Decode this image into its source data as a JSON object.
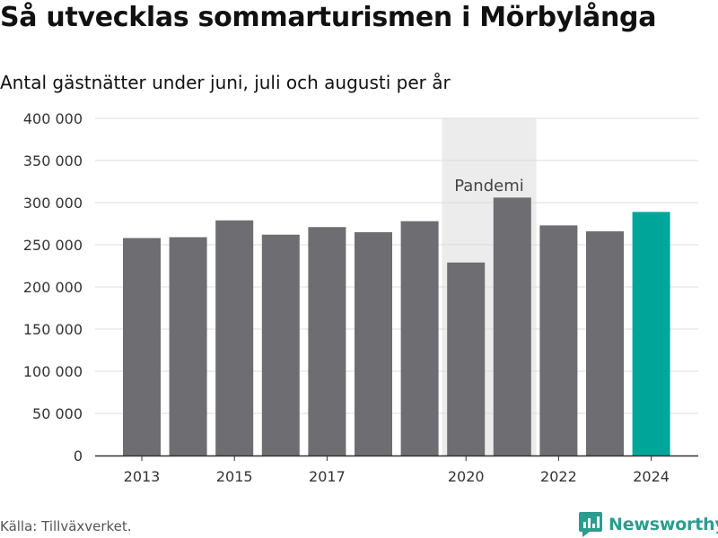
{
  "header": {
    "title": "Så utvecklas sommarturismen i Mörbylånga",
    "subtitle": "Antal gästnätter under juni, juli och augusti per år"
  },
  "footer": {
    "source": "Källa: Tillväxverket.",
    "brand": "Newsworthy"
  },
  "chart_data": {
    "type": "bar",
    "categories": [
      "2013",
      "2014",
      "2015",
      "2016",
      "2017",
      "2018",
      "2019",
      "2020",
      "2021",
      "2022",
      "2023",
      "2024"
    ],
    "values": [
      258000,
      259000,
      279000,
      262000,
      271000,
      265000,
      278000,
      229000,
      306000,
      273000,
      266000,
      289000
    ],
    "x_tick_labels": [
      "2013",
      "2015",
      "2017",
      "2020",
      "2022",
      "2024"
    ],
    "y_ticks": [
      0,
      50000,
      100000,
      150000,
      200000,
      250000,
      300000,
      350000,
      400000
    ],
    "y_tick_labels": [
      "0",
      "50 000",
      "100 000",
      "150 000",
      "200 000",
      "250 000",
      "300 000",
      "350 000",
      "400 000"
    ],
    "ylim": [
      0,
      400000
    ],
    "bar_color": "#6d6d72",
    "highlight_color": "#00a59a",
    "highlight_category": "2024",
    "grid": true,
    "annotation": {
      "label": "Pandemi",
      "categories": [
        "2020",
        "2021"
      ],
      "band_color": "#ececec"
    }
  }
}
